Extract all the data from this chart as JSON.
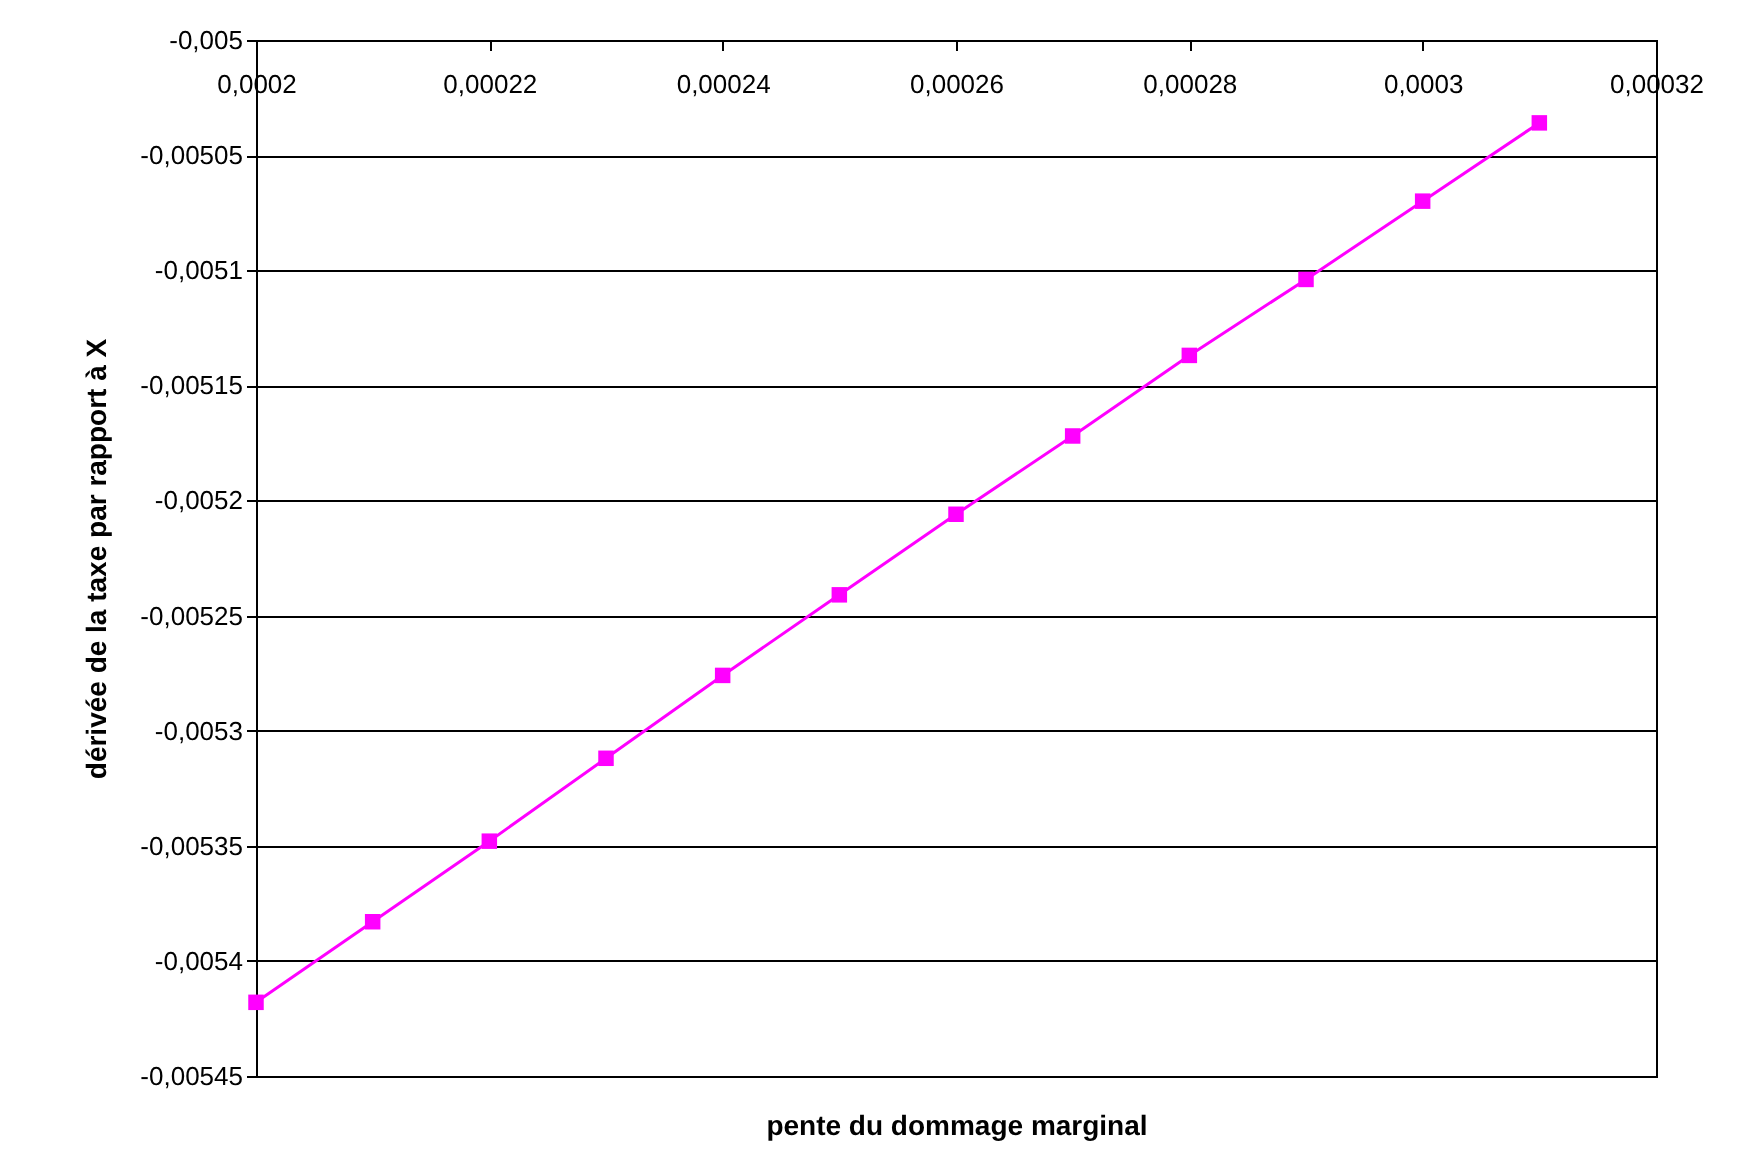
{
  "chart_data": {
    "type": "line",
    "xlabel": "pente du dommage marginal",
    "ylabel": "dérivée de la taxe par rapport à X",
    "x": [
      0.0002,
      0.00021,
      0.00022,
      0.00023,
      0.00024,
      0.00025,
      0.00026,
      0.00027,
      0.00028,
      0.00029,
      0.0003,
      0.00031
    ],
    "series": [
      {
        "color": "#ff00ff",
        "values": [
          -0.005418,
          -0.005383,
          -0.005348,
          -0.005312,
          -0.005276,
          -0.005241,
          -0.005206,
          -0.005172,
          -0.005137,
          -0.005104,
          -0.00507,
          -0.005036
        ]
      }
    ],
    "xlim": [
      0.0002,
      0.00032
    ],
    "xticks": [
      {
        "value": 0.0002,
        "label": "0,0002"
      },
      {
        "value": 0.00022,
        "label": "0,00022"
      },
      {
        "value": 0.00024,
        "label": "0,00024"
      },
      {
        "value": 0.00026,
        "label": "0,00026"
      },
      {
        "value": 0.00028,
        "label": "0,00028"
      },
      {
        "value": 0.0003,
        "label": "0,0003"
      },
      {
        "value": 0.00032,
        "label": "0,00032"
      }
    ],
    "ylim": [
      -0.00545,
      -0.005
    ],
    "yticks": [
      {
        "value": -0.00545,
        "label": "-0,00545"
      },
      {
        "value": -0.0054,
        "label": "-0,0054"
      },
      {
        "value": -0.00535,
        "label": "-0,00535"
      },
      {
        "value": -0.0053,
        "label": "-0,0053"
      },
      {
        "value": -0.00525,
        "label": "-0,00525"
      },
      {
        "value": -0.0052,
        "label": "-0,0052"
      },
      {
        "value": -0.00515,
        "label": "-0,00515"
      },
      {
        "value": -0.0051,
        "label": "-0,0051"
      },
      {
        "value": -0.00505,
        "label": "-0,00505"
      },
      {
        "value": -0.005,
        "label": "-0,005"
      }
    ],
    "grid": "y",
    "marker": "square"
  }
}
